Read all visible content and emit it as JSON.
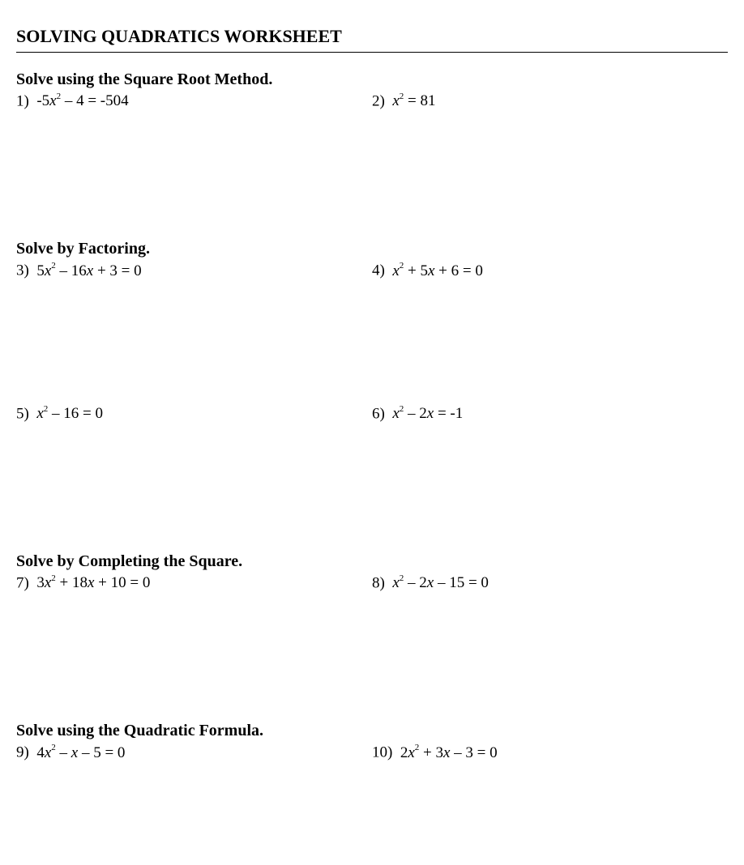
{
  "title": "SOLVING QUADRATICS WORKSHEET",
  "sections": {
    "s1": {
      "heading": "Solve using the Square Root Method.",
      "p1_num": "1)  ",
      "p2_num": "2)  "
    },
    "s2": {
      "heading": "Solve by Factoring.",
      "p3_num": "3)  ",
      "p4_num": "4)  ",
      "p5_num": "5)  ",
      "p6_num": "6)  "
    },
    "s3": {
      "heading": "Solve by Completing the Square.",
      "p7_num": "7)  ",
      "p8_num": "8)  "
    },
    "s4": {
      "heading": "Solve using the Quadratic Formula.",
      "p9_num": "9)  ",
      "p10_num": "10)  "
    }
  },
  "equations": {
    "p1_a": "-5",
    "p1_b": " – 4 = -504",
    "p2_a": "",
    "p2_b": " = 81",
    "p3_a": "5",
    "p3_b": " – 16",
    "p3_c": " + 3 = 0",
    "p4_a": "",
    "p4_b": " + 5",
    "p4_c": " + 6 = 0",
    "p5_a": "",
    "p5_b": " – 16 = 0",
    "p6_a": "",
    "p6_b": " – 2",
    "p6_c": " = -1",
    "p7_a": "3",
    "p7_b": " + 18",
    "p7_c": " + 10 = 0",
    "p8_a": "",
    "p8_b": " – 2",
    "p8_c": " – 15 = 0",
    "p9_a": "4",
    "p9_b": " – ",
    "p9_c": " – 5 = 0",
    "p10_a": "2",
    "p10_b": " + 3",
    "p10_c": " – 3 = 0"
  },
  "style": {
    "font_family": "Georgia, serif",
    "title_fontsize": 22,
    "heading_fontsize": 20,
    "problem_fontsize": 19,
    "text_color": "#000000",
    "background_color": "#ffffff",
    "hr_color": "#000000"
  }
}
